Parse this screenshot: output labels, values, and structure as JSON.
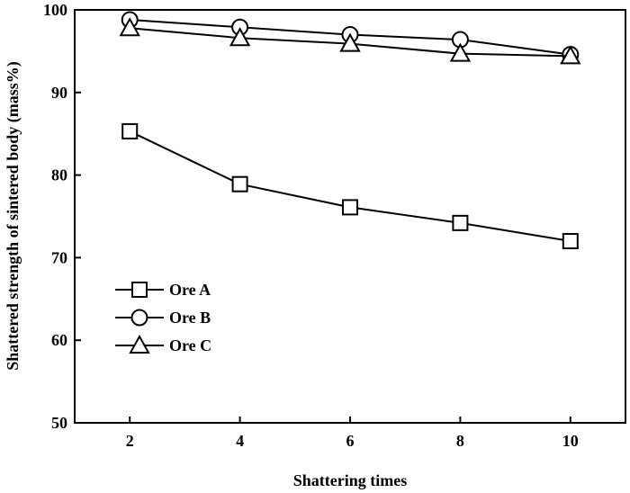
{
  "chart_data": {
    "type": "line",
    "title": "",
    "xlabel": "Shattering times",
    "ylabel": "Shattered strength of sintered body (mass%)",
    "xlim": [
      1,
      11
    ],
    "ylim": [
      50,
      100
    ],
    "xticks": [
      2,
      4,
      6,
      8,
      10
    ],
    "yticks": [
      50,
      60,
      70,
      80,
      90,
      100
    ],
    "grid": false,
    "legend_position": "bottom-left",
    "x": [
      2,
      4,
      6,
      8,
      10
    ],
    "series": [
      {
        "name": "Ore A",
        "marker": "square",
        "values": [
          85.3,
          78.9,
          76.1,
          74.2,
          72.0
        ]
      },
      {
        "name": "Ore B",
        "marker": "circle",
        "values": [
          98.8,
          97.9,
          97.0,
          96.4,
          94.6
        ]
      },
      {
        "name": "Ore C",
        "marker": "triangle",
        "values": [
          97.8,
          96.6,
          95.9,
          94.7,
          94.4
        ]
      }
    ]
  }
}
